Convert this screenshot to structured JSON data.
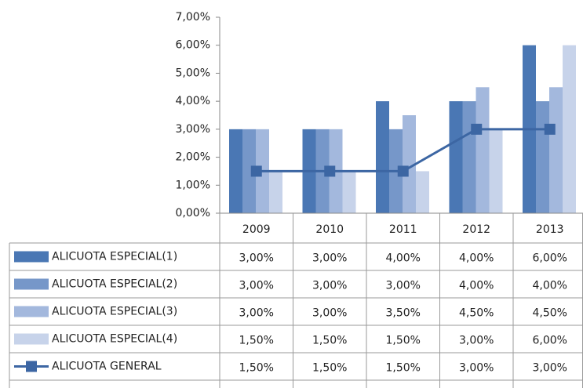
{
  "chart_data": {
    "type": "bar",
    "categories": [
      "2009",
      "2010",
      "2011",
      "2012",
      "2013"
    ],
    "ylim": [
      0,
      7
    ],
    "yticks": [
      {
        "value": 0,
        "label": "0,00%"
      },
      {
        "value": 1,
        "label": "1,00%"
      },
      {
        "value": 2,
        "label": "2,00%"
      },
      {
        "value": 3,
        "label": "3,00%"
      },
      {
        "value": 4,
        "label": "4,00%"
      },
      {
        "value": 5,
        "label": "5,00%"
      },
      {
        "value": 6,
        "label": "6,00%"
      },
      {
        "value": 7,
        "label": "7,00%"
      }
    ],
    "grid": false,
    "series": [
      {
        "name": "ALICUOTA ESPECIAL(1)",
        "color": "#4a77b4",
        "values": [
          3,
          3,
          4,
          4,
          6
        ],
        "value_labels": [
          "3,00%",
          "3,00%",
          "4,00%",
          "4,00%",
          "6,00%"
        ]
      },
      {
        "name": "ALICUOTA ESPECIAL(2)",
        "color": "#7697c9",
        "values": [
          3,
          3,
          3,
          4,
          4
        ],
        "value_labels": [
          "3,00%",
          "3,00%",
          "3,00%",
          "4,00%",
          "4,00%"
        ]
      },
      {
        "name": "ALICUOTA ESPECIAL(3)",
        "color": "#a3b8dd",
        "values": [
          3,
          3,
          3.5,
          4.5,
          4.5
        ],
        "value_labels": [
          "3,00%",
          "3,00%",
          "3,50%",
          "4,50%",
          "4,50%"
        ]
      },
      {
        "name": "ALICUOTA ESPECIAL(4)",
        "color": "#c7d3ea",
        "values": [
          1.5,
          1.5,
          1.5,
          3,
          6
        ],
        "value_labels": [
          "1,50%",
          "1,50%",
          "1,50%",
          "3,00%",
          "6,00%"
        ]
      },
      {
        "name": "ALICUOTA GENERAL",
        "type": "line",
        "color": "#3c66a3",
        "values": [
          1.5,
          1.5,
          1.5,
          3,
          3
        ],
        "value_labels": [
          "1,50%",
          "1,50%",
          "1,50%",
          "3,00%",
          "3,00%"
        ]
      }
    ]
  }
}
